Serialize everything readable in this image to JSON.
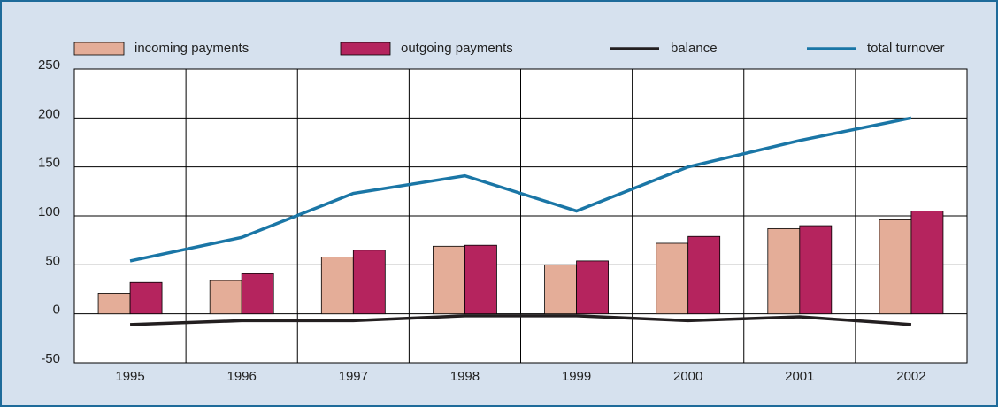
{
  "chart_data": {
    "type": "bar_line",
    "categories": [
      "1995",
      "1996",
      "1997",
      "1998",
      "1999",
      "2000",
      "2001",
      "2002"
    ],
    "series": [
      {
        "name": "incoming payments",
        "type": "bar",
        "color": "#e4ad98",
        "values": [
          21,
          34,
          58,
          69,
          50,
          72,
          87,
          96
        ]
      },
      {
        "name": "outgoing payments",
        "type": "bar",
        "color": "#b5245e",
        "values": [
          32,
          41,
          65,
          70,
          54,
          79,
          90,
          105
        ]
      },
      {
        "name": "balance",
        "type": "line",
        "color": "#231f20",
        "values": [
          -11,
          -7,
          -7,
          -2,
          -2,
          -7,
          -3,
          -11
        ]
      },
      {
        "name": "total turnover",
        "type": "line",
        "color": "#1a76a6",
        "values": [
          54,
          78,
          123,
          141,
          105,
          150,
          177,
          200
        ]
      }
    ],
    "ylim": [
      -50,
      250
    ],
    "yticks": [
      -50,
      0,
      50,
      100,
      150,
      200,
      250
    ],
    "grid": true
  }
}
